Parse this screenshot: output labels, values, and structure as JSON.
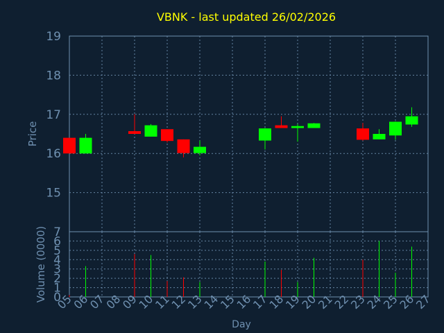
{
  "chart_data": [
    {
      "type": "candlestick",
      "title": "VBNK - last updated 26/02/2026",
      "xlabel": "",
      "ylabel": "Price",
      "ylim": [
        14.0,
        19.0
      ],
      "yticks": [
        "19",
        "18",
        "17",
        "16",
        "15"
      ],
      "grid": true,
      "colors": {
        "up": "#00ff00",
        "down": "#ff0000",
        "background": "#0f1f30",
        "axis": "#6f90b0",
        "title": "#ffff00"
      },
      "candles": [
        {
          "day": "05",
          "open": 16.4,
          "high": 16.4,
          "low": 16.0,
          "close": 16.0
        },
        {
          "day": "06",
          "open": 16.0,
          "high": 16.5,
          "low": 16.0,
          "close": 16.4
        },
        {
          "day": "09",
          "open": 16.57,
          "high": 17.0,
          "low": 16.5,
          "close": 16.5
        },
        {
          "day": "10",
          "open": 16.43,
          "high": 16.75,
          "low": 16.43,
          "close": 16.72
        },
        {
          "day": "11",
          "open": 16.62,
          "high": 16.62,
          "low": 16.28,
          "close": 16.32
        },
        {
          "day": "12",
          "open": 16.36,
          "high": 16.36,
          "low": 15.9,
          "close": 16.01
        },
        {
          "day": "13",
          "open": 16.01,
          "high": 16.33,
          "low": 15.95,
          "close": 16.17
        },
        {
          "day": "17",
          "open": 16.33,
          "high": 16.65,
          "low": 16.1,
          "close": 16.64
        },
        {
          "day": "18",
          "open": 16.72,
          "high": 16.95,
          "low": 16.65,
          "close": 16.65
        },
        {
          "day": "19",
          "open": 16.65,
          "high": 16.75,
          "low": 16.3,
          "close": 16.7
        },
        {
          "day": "20",
          "open": 16.65,
          "high": 16.78,
          "low": 16.65,
          "close": 16.77
        },
        {
          "day": "23",
          "open": 16.64,
          "high": 16.78,
          "low": 16.33,
          "close": 16.35
        },
        {
          "day": "24",
          "open": 16.36,
          "high": 16.62,
          "low": 16.36,
          "close": 16.5
        },
        {
          "day": "25",
          "open": 16.46,
          "high": 16.82,
          "low": 16.35,
          "close": 16.81
        },
        {
          "day": "26",
          "open": 16.74,
          "high": 17.18,
          "low": 16.68,
          "close": 16.95
        }
      ]
    },
    {
      "type": "bar",
      "xlabel": "Day",
      "ylabel": "Volume (0000)",
      "ylim": [
        0,
        7
      ],
      "yticks": [
        "7",
        "6",
        "5",
        "4",
        "3",
        "2",
        "1",
        "0"
      ],
      "grid": true,
      "categories": [
        "05",
        "06",
        "07",
        "08",
        "09",
        "10",
        "11",
        "12",
        "13",
        "14",
        "15",
        "16",
        "17",
        "18",
        "19",
        "20",
        "21",
        "22",
        "23",
        "24",
        "25",
        "26",
        "27"
      ],
      "bars": [
        {
          "day": "05",
          "value": 0.2,
          "direction": "down"
        },
        {
          "day": "06",
          "value": 3.3,
          "direction": "up"
        },
        {
          "day": "09",
          "value": 4.6,
          "direction": "down"
        },
        {
          "day": "10",
          "value": 4.5,
          "direction": "up"
        },
        {
          "day": "11",
          "value": 1.7,
          "direction": "down"
        },
        {
          "day": "12",
          "value": 2.1,
          "direction": "down"
        },
        {
          "day": "13",
          "value": 1.6,
          "direction": "up"
        },
        {
          "day": "17",
          "value": 3.8,
          "direction": "up"
        },
        {
          "day": "18",
          "value": 2.9,
          "direction": "down"
        },
        {
          "day": "19",
          "value": 1.6,
          "direction": "up"
        },
        {
          "day": "20",
          "value": 4.2,
          "direction": "up"
        },
        {
          "day": "23",
          "value": 4.0,
          "direction": "down"
        },
        {
          "day": "24",
          "value": 6.0,
          "direction": "up"
        },
        {
          "day": "25",
          "value": 2.6,
          "direction": "up"
        },
        {
          "day": "26",
          "value": 5.4,
          "direction": "up"
        }
      ]
    }
  ]
}
